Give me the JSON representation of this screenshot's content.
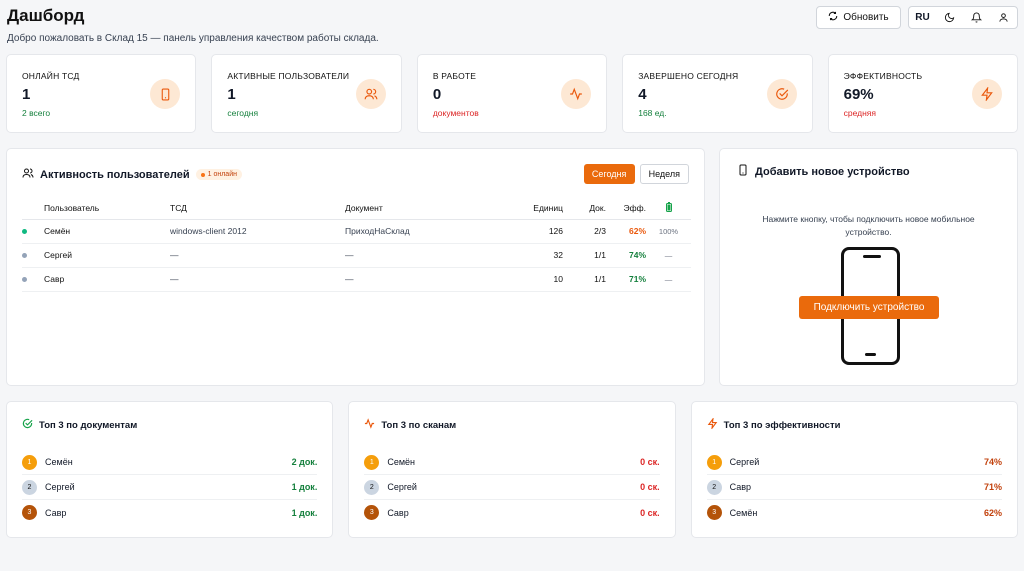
{
  "header": {
    "title": "Дашборд",
    "subtitle": "Добро пожаловать в Склад 15 — панель управления качеством работы склада.",
    "refresh_label": "Обновить",
    "lang": "RU"
  },
  "stats": [
    {
      "label": "ОНЛАЙН ТСД",
      "value": "1",
      "sub": "2 всего",
      "icon": "device-icon"
    },
    {
      "label": "АКТИВНЫЕ ПОЛЬЗОВАТЕЛИ",
      "value": "1",
      "sub": "сегодня",
      "icon": "users-icon"
    },
    {
      "label": "В РАБОТЕ",
      "value": "0",
      "sub": "документов",
      "icon": "activity-icon"
    },
    {
      "label": "ЗАВЕРШЕНО СЕГОДНЯ",
      "value": "4",
      "sub": "168 ед.",
      "icon": "check-circle-icon"
    },
    {
      "label": "ЭФФЕКТИВНОСТЬ",
      "value": "69%",
      "sub": "средняя",
      "icon": "lightning-icon"
    }
  ],
  "activity": {
    "title": "Активность пользователей",
    "badge": "1 онлайн",
    "tab_today": "Сегодня",
    "tab_week": "Неделя",
    "columns": [
      "Пользователь",
      "ТСД",
      "Документ",
      "Единиц",
      "Док.",
      "Эфф."
    ],
    "rows": [
      {
        "user": "Семён",
        "device": "windows-client 2012",
        "doc": "ПриходНаСклад",
        "units": "126",
        "docs": "2/3",
        "eff": "62%",
        "battery": "100%",
        "status_color": "#10b981",
        "eff_color": "#ea580c"
      },
      {
        "user": "Сергей",
        "device": "—",
        "doc": "—",
        "units": "32",
        "docs": "1/1",
        "eff": "74%",
        "battery": "—",
        "status_color": "#94a3b8",
        "eff_color": "#15803d"
      },
      {
        "user": "Савр",
        "device": "—",
        "doc": "—",
        "units": "10",
        "docs": "1/1",
        "eff": "71%",
        "battery": "—",
        "status_color": "#94a3b8",
        "eff_color": "#15803d"
      }
    ]
  },
  "device": {
    "title": "Добавить новое устройство",
    "description": "Нажмите кнопку, чтобы подключить новое мобильное устройство.",
    "button": "Подключить устройство"
  },
  "tops": [
    {
      "title": "Топ 3 по документам",
      "icon": "check-circle-icon",
      "items": [
        {
          "rank": "1",
          "name": "Семён",
          "value": "2 док."
        },
        {
          "rank": "2",
          "name": "Сергей",
          "value": "1 док."
        },
        {
          "rank": "3",
          "name": "Савр",
          "value": "1 док."
        }
      ]
    },
    {
      "title": "Топ 3 по сканам",
      "icon": "activity-icon",
      "items": [
        {
          "rank": "1",
          "name": "Семён",
          "value": "0 ск."
        },
        {
          "rank": "2",
          "name": "Сергей",
          "value": "0 ск."
        },
        {
          "rank": "3",
          "name": "Савр",
          "value": "0 ск."
        }
      ]
    },
    {
      "title": "Топ 3 по эффективности",
      "icon": "lightning-icon",
      "items": [
        {
          "rank": "1",
          "name": "Сергей",
          "value": "74%"
        },
        {
          "rank": "2",
          "name": "Савр",
          "value": "71%"
        },
        {
          "rank": "3",
          "name": "Семён",
          "value": "62%"
        }
      ]
    }
  ]
}
